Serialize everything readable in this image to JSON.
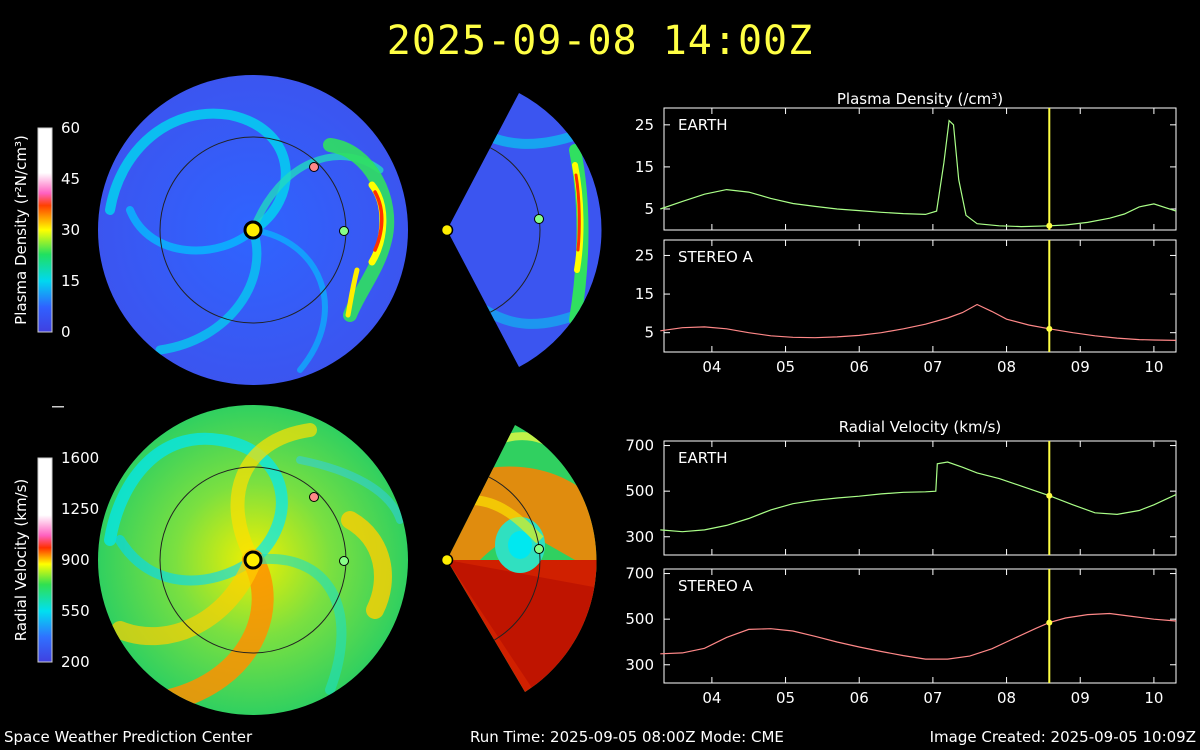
{
  "timestamp": "2025-09-08 14:00Z",
  "footer": {
    "left": "Space Weather Prediction Center",
    "middle": "Run Time: 2025-09-05 08:00Z  Mode: CME",
    "right": "Image Created: 2025-09-05 10:09Z"
  },
  "colorbars": [
    {
      "label": "Plasma Density (r²N/cm³)",
      "ticks": [
        60,
        45,
        30,
        15,
        0
      ]
    },
    {
      "label": "Radial Velocity (km/s)",
      "ticks": [
        1600,
        1250,
        900,
        550,
        200
      ]
    }
  ],
  "chart_data": [
    {
      "type": "line",
      "title": "Plasma Density (/cm³)",
      "panel_label": "EARTH",
      "x": [
        3.3,
        3.6,
        3.9,
        4.2,
        4.5,
        4.8,
        5.1,
        5.4,
        5.7,
        6.0,
        6.3,
        6.6,
        6.9,
        7.05,
        7.15,
        7.22,
        7.28,
        7.35,
        7.45,
        7.6,
        7.9,
        8.2,
        8.58,
        8.8,
        9.1,
        9.4,
        9.6,
        9.8,
        10.0,
        10.3
      ],
      "y": [
        5.0,
        6.8,
        8.5,
        9.6,
        9.0,
        7.5,
        6.3,
        5.6,
        5.0,
        4.6,
        4.2,
        3.9,
        3.7,
        4.5,
        16.0,
        26.0,
        25.0,
        12.0,
        3.5,
        1.5,
        1.0,
        0.8,
        1.0,
        1.2,
        1.8,
        2.8,
        3.8,
        5.5,
        6.2,
        4.5
      ],
      "color": "#aaff88",
      "ylim": [
        0,
        29
      ],
      "yticks": [
        5,
        15,
        25
      ],
      "xlim": [
        3.35,
        10.3
      ],
      "xticks": [
        4,
        5,
        6,
        7,
        8,
        9,
        10
      ],
      "xtick_labels": [
        "04",
        "05",
        "06",
        "07",
        "08",
        "09",
        "10"
      ],
      "marker_x": 8.58,
      "marker_y": 1.0
    },
    {
      "type": "line",
      "panel_label": "STEREO A",
      "x": [
        3.3,
        3.6,
        3.9,
        4.2,
        4.5,
        4.8,
        5.1,
        5.4,
        5.7,
        6.0,
        6.3,
        6.6,
        6.9,
        7.2,
        7.4,
        7.6,
        7.8,
        8.0,
        8.3,
        8.58,
        8.9,
        9.2,
        9.5,
        9.8,
        10.0,
        10.3
      ],
      "y": [
        5.5,
        6.3,
        6.5,
        6.0,
        5.0,
        4.2,
        3.8,
        3.7,
        3.9,
        4.3,
        5.0,
        6.0,
        7.2,
        8.8,
        10.2,
        12.3,
        10.5,
        8.5,
        7.0,
        6.0,
        5.0,
        4.2,
        3.6,
        3.2,
        3.1,
        3.0
      ],
      "color": "#ff8888",
      "ylim": [
        0,
        29
      ],
      "yticks": [
        5,
        15,
        25
      ],
      "xlim": [
        3.35,
        10.3
      ],
      "xticks": [
        4,
        5,
        6,
        7,
        8,
        9,
        10
      ],
      "xtick_labels": [
        "04",
        "05",
        "06",
        "07",
        "08",
        "09",
        "10"
      ],
      "marker_x": 8.58,
      "marker_y": 6.0
    },
    {
      "type": "line",
      "title": "Radial Velocity (km/s)",
      "panel_label": "EARTH",
      "x": [
        3.3,
        3.6,
        3.9,
        4.2,
        4.5,
        4.8,
        5.1,
        5.4,
        5.7,
        6.0,
        6.3,
        6.6,
        6.9,
        7.04,
        7.06,
        7.2,
        7.4,
        7.6,
        7.9,
        8.2,
        8.58,
        8.9,
        9.2,
        9.5,
        9.8,
        10.0,
        10.3
      ],
      "y": [
        330,
        322,
        330,
        350,
        380,
        418,
        445,
        460,
        470,
        478,
        488,
        495,
        497,
        500,
        620,
        628,
        605,
        580,
        555,
        522,
        480,
        440,
        405,
        398,
        415,
        440,
        485
      ],
      "color": "#aaff88",
      "ylim": [
        220,
        720
      ],
      "yticks": [
        300,
        500,
        700
      ],
      "xlim": [
        3.35,
        10.3
      ],
      "xticks": [
        4,
        5,
        6,
        7,
        8,
        9,
        10
      ],
      "xtick_labels": [
        "04",
        "05",
        "06",
        "07",
        "08",
        "09",
        "10"
      ],
      "marker_x": 8.58,
      "marker_y": 480
    },
    {
      "type": "line",
      "panel_label": "STEREO A",
      "x": [
        3.3,
        3.6,
        3.9,
        4.2,
        4.5,
        4.8,
        5.1,
        5.4,
        5.7,
        6.0,
        6.3,
        6.6,
        6.9,
        7.2,
        7.5,
        7.8,
        8.1,
        8.4,
        8.58,
        8.8,
        9.1,
        9.4,
        9.7,
        10.0,
        10.3
      ],
      "y": [
        348,
        352,
        372,
        420,
        455,
        458,
        448,
        425,
        400,
        378,
        358,
        340,
        325,
        325,
        338,
        370,
        415,
        460,
        485,
        505,
        520,
        525,
        512,
        500,
        492
      ],
      "color": "#ff8888",
      "ylim": [
        220,
        720
      ],
      "yticks": [
        300,
        500,
        700
      ],
      "xlim": [
        3.35,
        10.3
      ],
      "xticks": [
        4,
        5,
        6,
        7,
        8,
        9,
        10
      ],
      "xtick_labels": [
        "04",
        "05",
        "06",
        "07",
        "08",
        "09",
        "10"
      ],
      "marker_x": 8.58,
      "marker_y": 485
    }
  ]
}
